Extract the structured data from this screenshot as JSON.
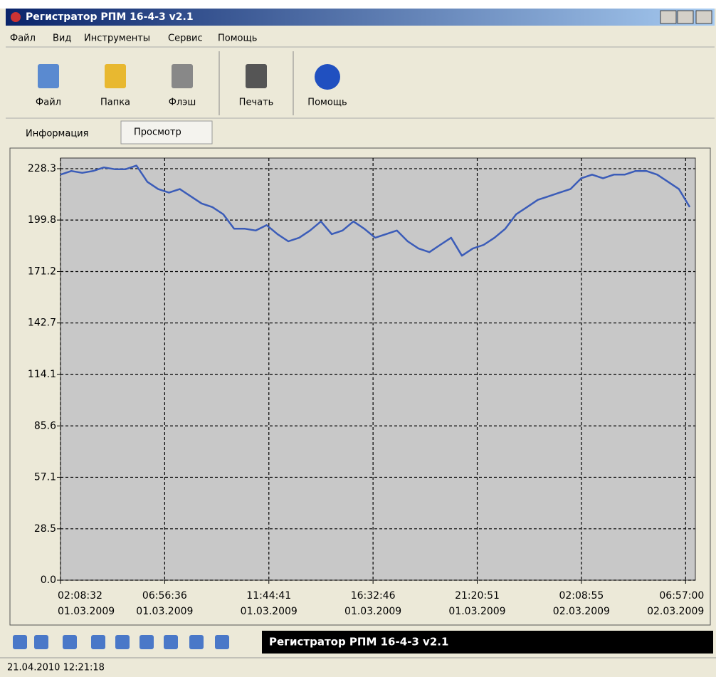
{
  "window": {
    "title": "Регистратор РПМ 16-4-3 v2.1"
  },
  "menu": [
    "Файл",
    "Вид",
    "Инструменты",
    "Сервис",
    "Помощь"
  ],
  "toolbar": [
    "Файл",
    "Папка",
    "Флэш",
    "Печать",
    "Помощь"
  ],
  "tabs": [
    "Информация",
    "Просмотр"
  ],
  "caption": "Регистратор РПМ 16-4-3 v2.1",
  "status": "21.04.2010 12:21:18",
  "chart_data": {
    "type": "line",
    "color": "#3b5cb8",
    "grid": true,
    "ylim": [
      0,
      234.2
    ],
    "yticks": [
      {
        "value": 0,
        "label": "0.0"
      },
      28.5,
      57.1,
      85.6,
      114.1,
      142.7,
      171.2,
      199.8,
      228.3
    ],
    "xlim": [
      "2009-03-01T02:08:32",
      "2009-03-02T07:24:00"
    ],
    "xticks": [
      {
        "value": "2009-03-01T02:08:32",
        "label": [
          "02:08:32",
          "01.03.2009"
        ]
      },
      {
        "value": "2009-03-01T06:56:36",
        "label": [
          "06:56:36",
          "01.03.2009"
        ]
      },
      {
        "value": "2009-03-01T11:44:41",
        "label": [
          "11:44:41",
          "01.03.2009"
        ]
      },
      {
        "value": "2009-03-01T16:32:46",
        "label": [
          "16:32:46",
          "01.03.2009"
        ]
      },
      {
        "value": "2009-03-01T21:20:51",
        "label": [
          "21:20:51",
          "01.03.2009"
        ]
      },
      {
        "value": "2009-03-02T02:08:55",
        "label": [
          "02:08:55",
          "02.03.2009"
        ]
      },
      {
        "value": "2009-03-02T06:57:00",
        "label": [
          "06:57:00",
          "02.03.2009"
        ]
      }
    ],
    "x": [
      "2009-03-01T02:08:32",
      "2009-03-01T02:38:32",
      "2009-03-01T03:08:32",
      "2009-03-01T03:38:32",
      "2009-03-01T04:08:32",
      "2009-03-01T04:38:32",
      "2009-03-01T05:08:32",
      "2009-03-01T05:38:32",
      "2009-03-01T06:08:32",
      "2009-03-01T06:38:32",
      "2009-03-01T07:08:32",
      "2009-03-01T07:38:32",
      "2009-03-01T08:08:32",
      "2009-03-01T08:38:32",
      "2009-03-01T09:08:32",
      "2009-03-01T09:38:32",
      "2009-03-01T10:08:32",
      "2009-03-01T10:38:32",
      "2009-03-01T11:08:32",
      "2009-03-01T11:38:32",
      "2009-03-01T12:08:32",
      "2009-03-01T12:38:32",
      "2009-03-01T13:08:32",
      "2009-03-01T13:38:32",
      "2009-03-01T14:08:32",
      "2009-03-01T14:38:32",
      "2009-03-01T15:08:32",
      "2009-03-01T15:38:32",
      "2009-03-01T16:08:32",
      "2009-03-01T16:38:32",
      "2009-03-01T17:08:32",
      "2009-03-01T17:38:32",
      "2009-03-01T18:08:32",
      "2009-03-01T18:38:32",
      "2009-03-01T19:08:32",
      "2009-03-01T19:38:32",
      "2009-03-01T20:08:32",
      "2009-03-01T20:38:32",
      "2009-03-01T21:08:32",
      "2009-03-01T21:38:32",
      "2009-03-01T22:08:32",
      "2009-03-01T22:38:32",
      "2009-03-01T23:08:32",
      "2009-03-01T23:38:32",
      "2009-03-02T00:08:32",
      "2009-03-02T00:38:32",
      "2009-03-02T01:08:32",
      "2009-03-02T01:38:32",
      "2009-03-02T02:08:32",
      "2009-03-02T02:38:32",
      "2009-03-02T03:08:32",
      "2009-03-02T03:38:32",
      "2009-03-02T04:08:32",
      "2009-03-02T04:38:32",
      "2009-03-02T05:08:32",
      "2009-03-02T05:38:32",
      "2009-03-02T06:08:32",
      "2009-03-02T06:38:32",
      "2009-03-02T07:08:32"
    ],
    "values": [
      225,
      227,
      226,
      227,
      229,
      228,
      228,
      230,
      221,
      217,
      215,
      217,
      213,
      209,
      207,
      203,
      195,
      195,
      194,
      197,
      192,
      188,
      190,
      194,
      199,
      192,
      194,
      199,
      195,
      190,
      192,
      194,
      188,
      184,
      182,
      186,
      190,
      180,
      184,
      186,
      190,
      195,
      203,
      207,
      211,
      213,
      215,
      217,
      223,
      225,
      223,
      225,
      225,
      227,
      227,
      225,
      221,
      217,
      207
    ]
  }
}
